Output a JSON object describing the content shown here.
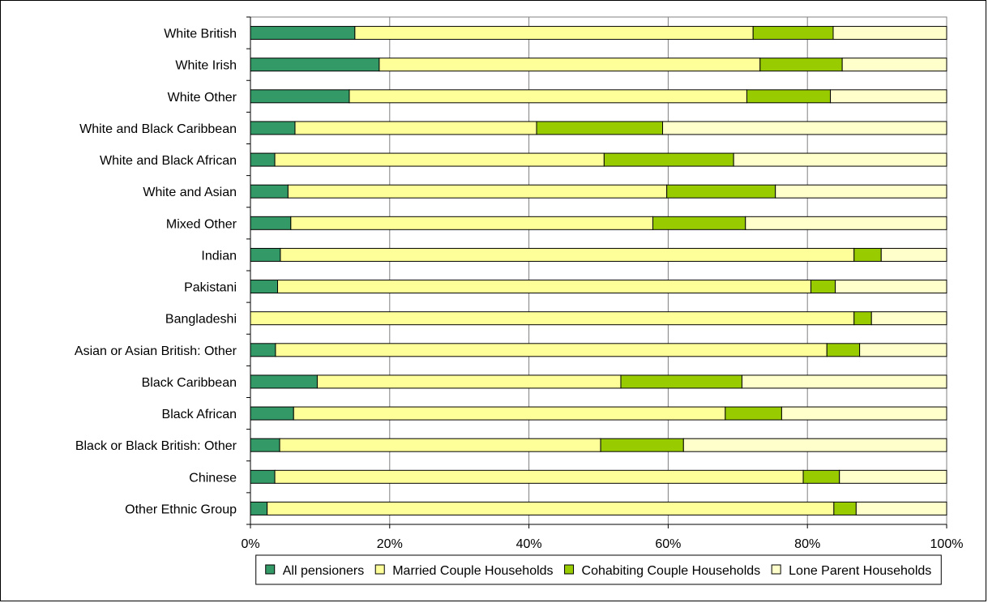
{
  "chart_data": {
    "type": "bar",
    "orientation": "horizontal",
    "stacked": "percent",
    "title": "",
    "xlabel": "",
    "ylabel": "",
    "xlim": [
      0,
      100
    ],
    "x_ticks": [
      "0%",
      "20%",
      "40%",
      "60%",
      "80%",
      "100%"
    ],
    "grid": "vertical",
    "legend_position": "bottom",
    "categories": [
      "White British",
      "White Irish",
      "White Other",
      "White and Black Caribbean",
      "White and Black African",
      "White and Asian",
      "Mixed Other",
      "Indian",
      "Pakistani",
      "Bangladeshi",
      "Asian or Asian British: Other",
      "Black Caribbean",
      "Black African",
      "Black or Black British: Other",
      "Chinese",
      "Other Ethnic Group"
    ],
    "series": [
      {
        "name": "All pensioners",
        "color": "#339966",
        "values": [
          15.0,
          18.5,
          14.2,
          6.4,
          3.5,
          5.4,
          5.8,
          4.3,
          3.9,
          0.0,
          3.6,
          9.6,
          6.2,
          4.2,
          3.5,
          2.4
        ]
      },
      {
        "name": "Married Couple Households",
        "color": "#ffff99",
        "values": [
          57.2,
          54.7,
          57.1,
          34.7,
          47.3,
          54.4,
          52.0,
          82.4,
          76.6,
          86.7,
          79.2,
          43.6,
          62.0,
          46.1,
          75.9,
          81.4
        ]
      },
      {
        "name": "Cohabiting Couple Households",
        "color": "#99cc00",
        "values": [
          11.5,
          11.8,
          12.0,
          18.1,
          18.6,
          15.6,
          13.3,
          3.9,
          3.5,
          2.5,
          4.7,
          17.4,
          8.1,
          11.9,
          5.2,
          3.2
        ]
      },
      {
        "name": "Lone Parent Households",
        "color": "#ffffcc",
        "values": [
          16.3,
          15.0,
          16.7,
          40.8,
          30.6,
          24.6,
          28.9,
          9.4,
          16.0,
          10.8,
          12.5,
          29.4,
          23.7,
          37.8,
          15.4,
          13.0
        ]
      }
    ]
  }
}
